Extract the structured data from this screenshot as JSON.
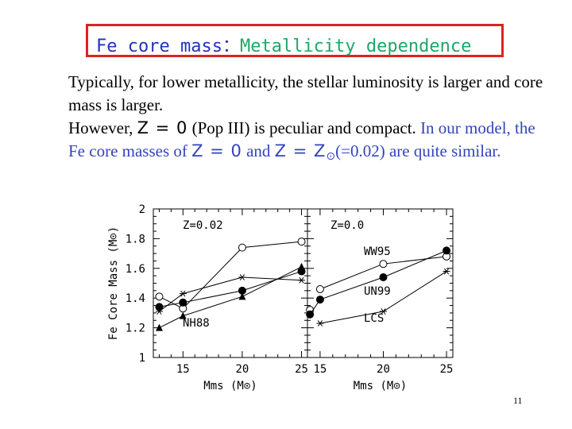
{
  "title": {
    "part1": "Fe core mass",
    "separator": "：",
    "part2": "Metallicity dependence",
    "colors": {
      "part1": "#2233bb",
      "part2": "#1aa86a",
      "border": "#e02020"
    }
  },
  "body": {
    "line1": "Typically, for lower metallicity, the stellar luminosity is larger and core mass is larger.",
    "line2a": "However, ",
    "z0": "Z = 0",
    "line2b": " (Pop III) is peculiar and compact. ",
    "line2c": "In our model, the Fe core masses of ",
    "line2d": " and ",
    "zsun": "Z = Z",
    "sun_symbol": "⊙",
    "line2e": "(=0.02) are quite similar."
  },
  "chart_data": [
    {
      "type": "line",
      "panel_label": "Z=0.02",
      "xlabel": "Mms (M⊙)",
      "ylabel": "Fe Core Mass (M⊙)",
      "xlim": [
        12.5,
        25.5
      ],
      "ylim": [
        1,
        2
      ],
      "x_ticks": [
        "15",
        "20",
        "25"
      ],
      "y_ticks": [
        "1",
        "1.2",
        "1.4",
        "1.6",
        "1.8",
        "2"
      ],
      "series": [
        {
          "marker": "open-circle",
          "x": [
            13,
            15,
            20,
            25
          ],
          "values": [
            1.41,
            1.33,
            1.74,
            1.78
          ]
        },
        {
          "marker": "star",
          "x": [
            13,
            15,
            20,
            25
          ],
          "values": [
            1.31,
            1.43,
            1.54,
            1.52
          ]
        },
        {
          "marker": "filled-circle",
          "x": [
            13,
            15,
            20,
            25
          ],
          "values": [
            1.34,
            1.37,
            1.45,
            1.58
          ]
        },
        {
          "name": "NH88",
          "marker": "filled-triangle",
          "x": [
            13,
            15,
            20,
            25
          ],
          "values": [
            1.2,
            1.28,
            1.41,
            1.61
          ]
        }
      ],
      "annotations": [
        "NH88"
      ]
    },
    {
      "type": "line",
      "panel_label": "Z=0.0",
      "xlabel": "Mms (M⊙)",
      "xlim": [
        14,
        25.5
      ],
      "ylim": [
        1,
        2
      ],
      "x_ticks": [
        "15",
        "20",
        "25"
      ],
      "series": [
        {
          "name": "WW95",
          "marker": "open-circle",
          "x": [
            15,
            20,
            25
          ],
          "values": [
            1.46,
            1.63,
            1.68
          ]
        },
        {
          "marker": "open-circle",
          "x": [
            14.2
          ],
          "values": [
            1.32
          ]
        },
        {
          "name": "UN99",
          "marker": "filled-circle",
          "x": [
            14.2,
            15,
            20,
            25
          ],
          "values": [
            1.29,
            1.39,
            1.54,
            1.72
          ]
        },
        {
          "name": "LCS",
          "marker": "star",
          "x": [
            15,
            20,
            25
          ],
          "values": [
            1.23,
            1.31,
            1.58
          ]
        }
      ],
      "annotations": [
        "WW95",
        "UN99",
        "LCS"
      ]
    }
  ],
  "page_number": "11"
}
